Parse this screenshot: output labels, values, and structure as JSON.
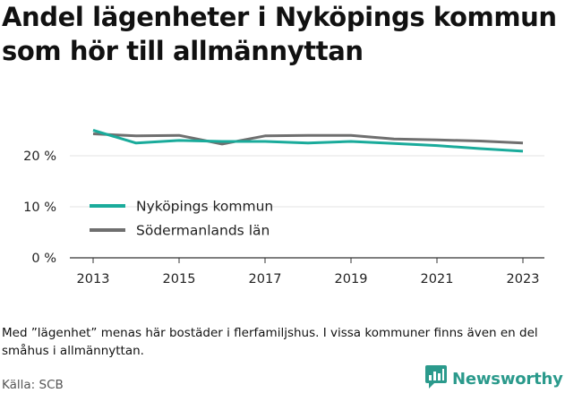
{
  "title": "Andel lägenheter i Nyköpings kommun som hör till allmännyttan",
  "note": "Med ”lägenhet” menas här bostäder i flerfamiljshus. I vissa kommuner finns även en del småhus i allmännyttan.",
  "source": "Källa: SCB",
  "brand": {
    "name": "Newsworthy",
    "icon": "newsworthy-logo-icon",
    "color": "#2b9a8c"
  },
  "chart_data": {
    "type": "line",
    "title": "Andel lägenheter i Nyköpings kommun som hör till allmännyttan",
    "xlabel": "",
    "ylabel": "",
    "x": [
      2013,
      2014,
      2015,
      2016,
      2017,
      2018,
      2019,
      2020,
      2021,
      2022,
      2023
    ],
    "ylim": [
      0,
      30
    ],
    "yticks": [
      0,
      10,
      20
    ],
    "ytick_labels": [
      "0 %",
      "10 %",
      "20 %"
    ],
    "xticks": [
      2013,
      2015,
      2017,
      2019,
      2021,
      2023
    ],
    "xtick_labels": [
      "2013",
      "2015",
      "2017",
      "2019",
      "2021",
      "2023"
    ],
    "grid": "horizontal",
    "legend_position": "lower-left",
    "series": [
      {
        "name": "Nyköpings kommun",
        "color": "#1aab9b",
        "values": [
          25.0,
          22.5,
          23.0,
          22.8,
          22.8,
          22.5,
          22.8,
          22.4,
          22.0,
          21.4,
          20.9
        ]
      },
      {
        "name": "Södermanlands län",
        "color": "#6f6f6f",
        "values": [
          24.3,
          23.9,
          24.0,
          22.3,
          23.9,
          24.0,
          24.0,
          23.3,
          23.1,
          22.9,
          22.5
        ]
      }
    ]
  }
}
